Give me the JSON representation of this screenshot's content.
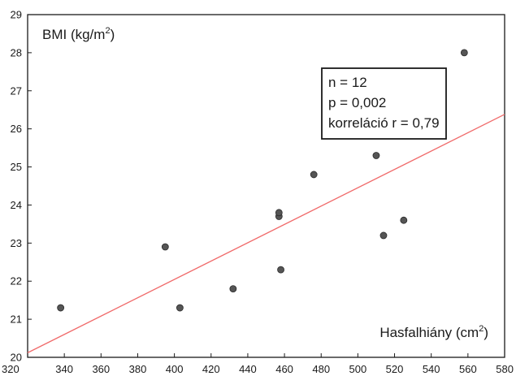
{
  "chart_data": {
    "type": "scatter",
    "title": "",
    "xlabel": "Hasfalhiány (cm",
    "xlabel_sup": "2",
    "xlabel_suffix": ")",
    "ylabel": "BMI (kg/m",
    "ylabel_sup": "2",
    "ylabel_suffix": ")",
    "xlim": [
      320,
      580
    ],
    "ylim": [
      20,
      29
    ],
    "xticks": [
      "320",
      "340",
      "360",
      "380",
      "400",
      "420",
      "440",
      "460",
      "480",
      "500",
      "520",
      "540",
      "560",
      "580"
    ],
    "yticks": [
      "20",
      "21",
      "22",
      "23",
      "24",
      "25",
      "26",
      "27",
      "28",
      "29"
    ],
    "grid": false,
    "series": [
      {
        "points": [
          {
            "x": 338,
            "y": 21.3
          },
          {
            "x": 395,
            "y": 22.9
          },
          {
            "x": 403,
            "y": 21.3
          },
          {
            "x": 432,
            "y": 21.8
          },
          {
            "x": 457,
            "y": 23.7
          },
          {
            "x": 457,
            "y": 23.8
          },
          {
            "x": 458,
            "y": 22.3
          },
          {
            "x": 476,
            "y": 24.8
          },
          {
            "x": 510,
            "y": 25.3
          },
          {
            "x": 514,
            "y": 23.2
          },
          {
            "x": 525,
            "y": 23.6
          },
          {
            "x": 558,
            "y": 28.0
          }
        ],
        "color": "#555555"
      }
    ],
    "trendline": {
      "x": [
        320,
        580
      ],
      "y": [
        20.12,
        26.38
      ],
      "color": "#f06a6a"
    },
    "annotation": [
      "n = 12",
      "p = 0,002",
      "korreláció r = 0,79"
    ]
  }
}
